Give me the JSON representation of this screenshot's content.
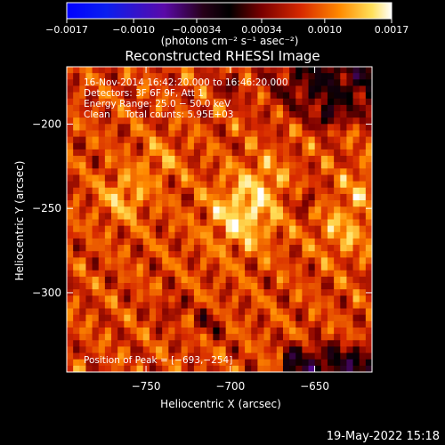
{
  "chart_data": {
    "type": "heatmap",
    "title": "Reconstructed RHESSI Image",
    "xlabel": "Heliocentric X (arcsec)",
    "ylabel": "Heliocentric Y (arcsec)",
    "xlim": [
      -797,
      -616
    ],
    "ylim": [
      -347,
      -166
    ],
    "x_ticks": [
      {
        "value": -750,
        "label": "−750"
      },
      {
        "value": -700,
        "label": "−700"
      },
      {
        "value": -650,
        "label": "−650"
      }
    ],
    "y_ticks": [
      {
        "value": -200,
        "label": "−200"
      },
      {
        "value": -250,
        "label": "−250"
      },
      {
        "value": -300,
        "label": "−300"
      }
    ],
    "colorbar": {
      "vmin": -0.0017,
      "vmax": 0.0017,
      "unit_label": "(photons cm⁻² s⁻¹ asec⁻²)",
      "ticks": [
        {
          "value": -0.0017,
          "label": "−0.0017"
        },
        {
          "value": -0.001,
          "label": "−0.0010"
        },
        {
          "value": -0.00034,
          "label": "−0.00034"
        },
        {
          "value": 0.00034,
          "label": "0.00034"
        },
        {
          "value": 0.001,
          "label": "0.0010"
        },
        {
          "value": 0.0017,
          "label": "0.0017"
        }
      ]
    },
    "info_lines": [
      "16-Nov-2014 16:42:20.000 to 16:46:20.000",
      "Detectors: 3F 6F 9F, Att 1",
      "Energy Range: 25.0 − 50.0 keV",
      "Clean     Total counts: 5.95E+03"
    ],
    "peak_label": "Position of Peak = [−693,−254]",
    "peak": {
      "x": -693,
      "y": -254
    },
    "grid": false
  },
  "footer": {
    "timestamp": "19-May-2022 15:18"
  }
}
